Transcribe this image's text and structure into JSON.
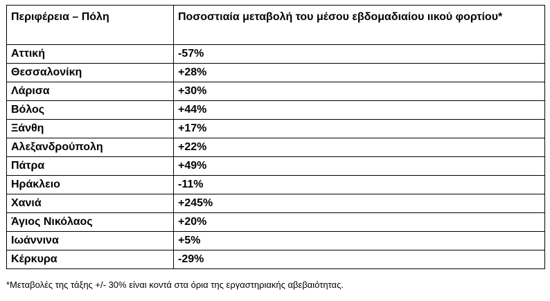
{
  "table": {
    "headers": {
      "region": "Περιφέρεια – Πόλη",
      "change": "Ποσοστιαία μεταβολή του μέσου εβδομαδιαίου ιικού φορτίου*"
    },
    "rows": [
      {
        "region": "Αττική",
        "change": "-57%"
      },
      {
        "region": "Θεσσαλονίκη",
        "change": "+28%"
      },
      {
        "region": "Λάρισα",
        "change": "+30%"
      },
      {
        "region": "Βόλος",
        "change": "+44%"
      },
      {
        "region": "Ξάνθη",
        "change": "+17%"
      },
      {
        "region": "Αλεξανδρούπολη",
        "change": "+22%"
      },
      {
        "region": "Πάτρα",
        "change": "+49%"
      },
      {
        "region": "Ηράκλειο",
        "change": "-11%"
      },
      {
        "region": "Χανιά",
        "change": "+245%"
      },
      {
        "region": "Άγιος Νικόλαος",
        "change": "+20%"
      },
      {
        "region": "Ιωάννινα",
        "change": "+5%"
      },
      {
        "region": "Κέρκυρα",
        "change": "-29%"
      }
    ]
  },
  "footnote": "*Μεταβολές της τάξης +/- 30% είναι κοντά στα όρια της εργαστηριακής αβεβαιότητας."
}
